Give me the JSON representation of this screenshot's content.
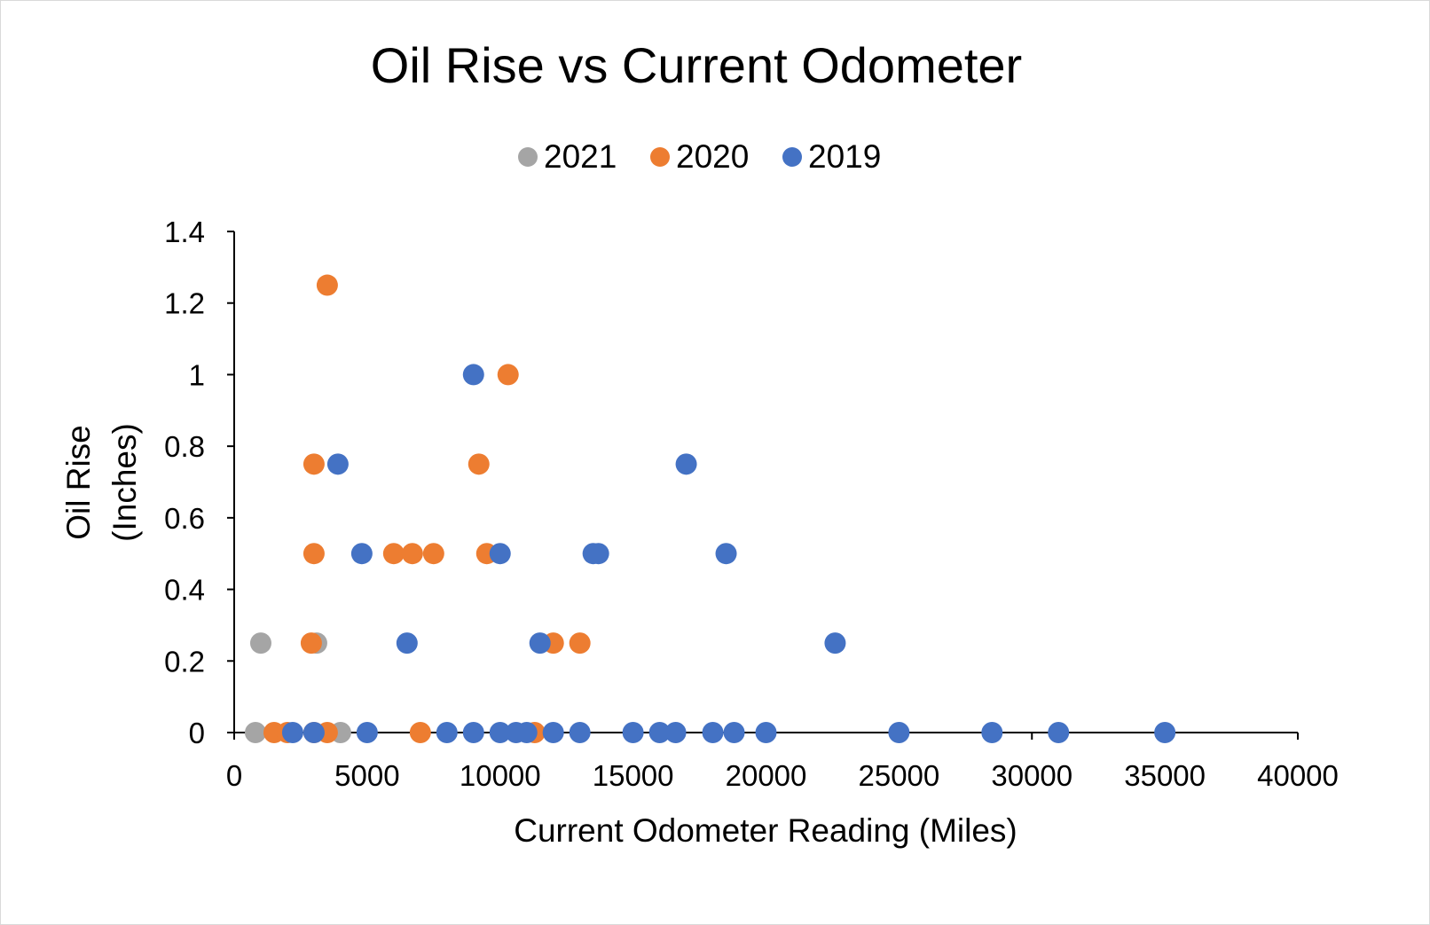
{
  "chart_data": {
    "type": "scatter",
    "title": "Oil Rise vs Current Odometer",
    "xlabel": "Current Odometer Reading (Miles)",
    "ylabel_lines": [
      "Oil Rise",
      "(Inches)"
    ],
    "xlim": [
      0,
      40000
    ],
    "ylim": [
      0,
      1.4
    ],
    "x_ticks": [
      0,
      5000,
      10000,
      15000,
      20000,
      25000,
      30000,
      35000,
      40000
    ],
    "y_ticks": [
      0,
      0.2,
      0.4,
      0.6,
      0.8,
      1,
      1.2,
      1.4
    ],
    "x_tick_labels": [
      "0",
      "5000",
      "10000",
      "15000",
      "20000",
      "25000",
      "30000",
      "35000",
      "40000"
    ],
    "y_tick_labels": [
      "0",
      "0.2",
      "0.4",
      "0.6",
      "0.8",
      "1",
      "1.2",
      "1.4"
    ],
    "grid": false,
    "legend_position": "top-center",
    "series": [
      {
        "name": "2021",
        "color": "#a5a5a5",
        "points": [
          [
            800,
            0
          ],
          [
            1000,
            0.25
          ],
          [
            3100,
            0.25
          ],
          [
            4000,
            0
          ]
        ]
      },
      {
        "name": "2020",
        "color": "#ed7d31",
        "points": [
          [
            1500,
            0
          ],
          [
            2000,
            0
          ],
          [
            2900,
            0.25
          ],
          [
            3000,
            0.75
          ],
          [
            3000,
            0.5
          ],
          [
            3000,
            0
          ],
          [
            3500,
            1.25
          ],
          [
            3500,
            0
          ],
          [
            6000,
            0.5
          ],
          [
            6700,
            0.5
          ],
          [
            7000,
            0
          ],
          [
            7500,
            0.5
          ],
          [
            9200,
            0.75
          ],
          [
            9500,
            0.5
          ],
          [
            10300,
            1
          ],
          [
            11300,
            0
          ],
          [
            12000,
            0.25
          ],
          [
            13000,
            0.25
          ]
        ]
      },
      {
        "name": "2019",
        "color": "#4472c4",
        "points": [
          [
            2200,
            0
          ],
          [
            3000,
            0
          ],
          [
            3900,
            0.75
          ],
          [
            4800,
            0.5
          ],
          [
            5000,
            0
          ],
          [
            6500,
            0.25
          ],
          [
            8000,
            0
          ],
          [
            9000,
            1
          ],
          [
            9000,
            0
          ],
          [
            10000,
            0.5
          ],
          [
            10000,
            0
          ],
          [
            10600,
            0
          ],
          [
            11000,
            0
          ],
          [
            11500,
            0.25
          ],
          [
            12000,
            0
          ],
          [
            13000,
            0
          ],
          [
            13500,
            0.5
          ],
          [
            13700,
            0.5
          ],
          [
            15000,
            0
          ],
          [
            16000,
            0
          ],
          [
            16600,
            0
          ],
          [
            17000,
            0.75
          ],
          [
            18000,
            0
          ],
          [
            18500,
            0.5
          ],
          [
            18800,
            0
          ],
          [
            20000,
            0
          ],
          [
            22600,
            0.25
          ],
          [
            25000,
            0
          ],
          [
            28500,
            0
          ],
          [
            31000,
            0
          ],
          [
            35000,
            0
          ]
        ]
      }
    ]
  }
}
